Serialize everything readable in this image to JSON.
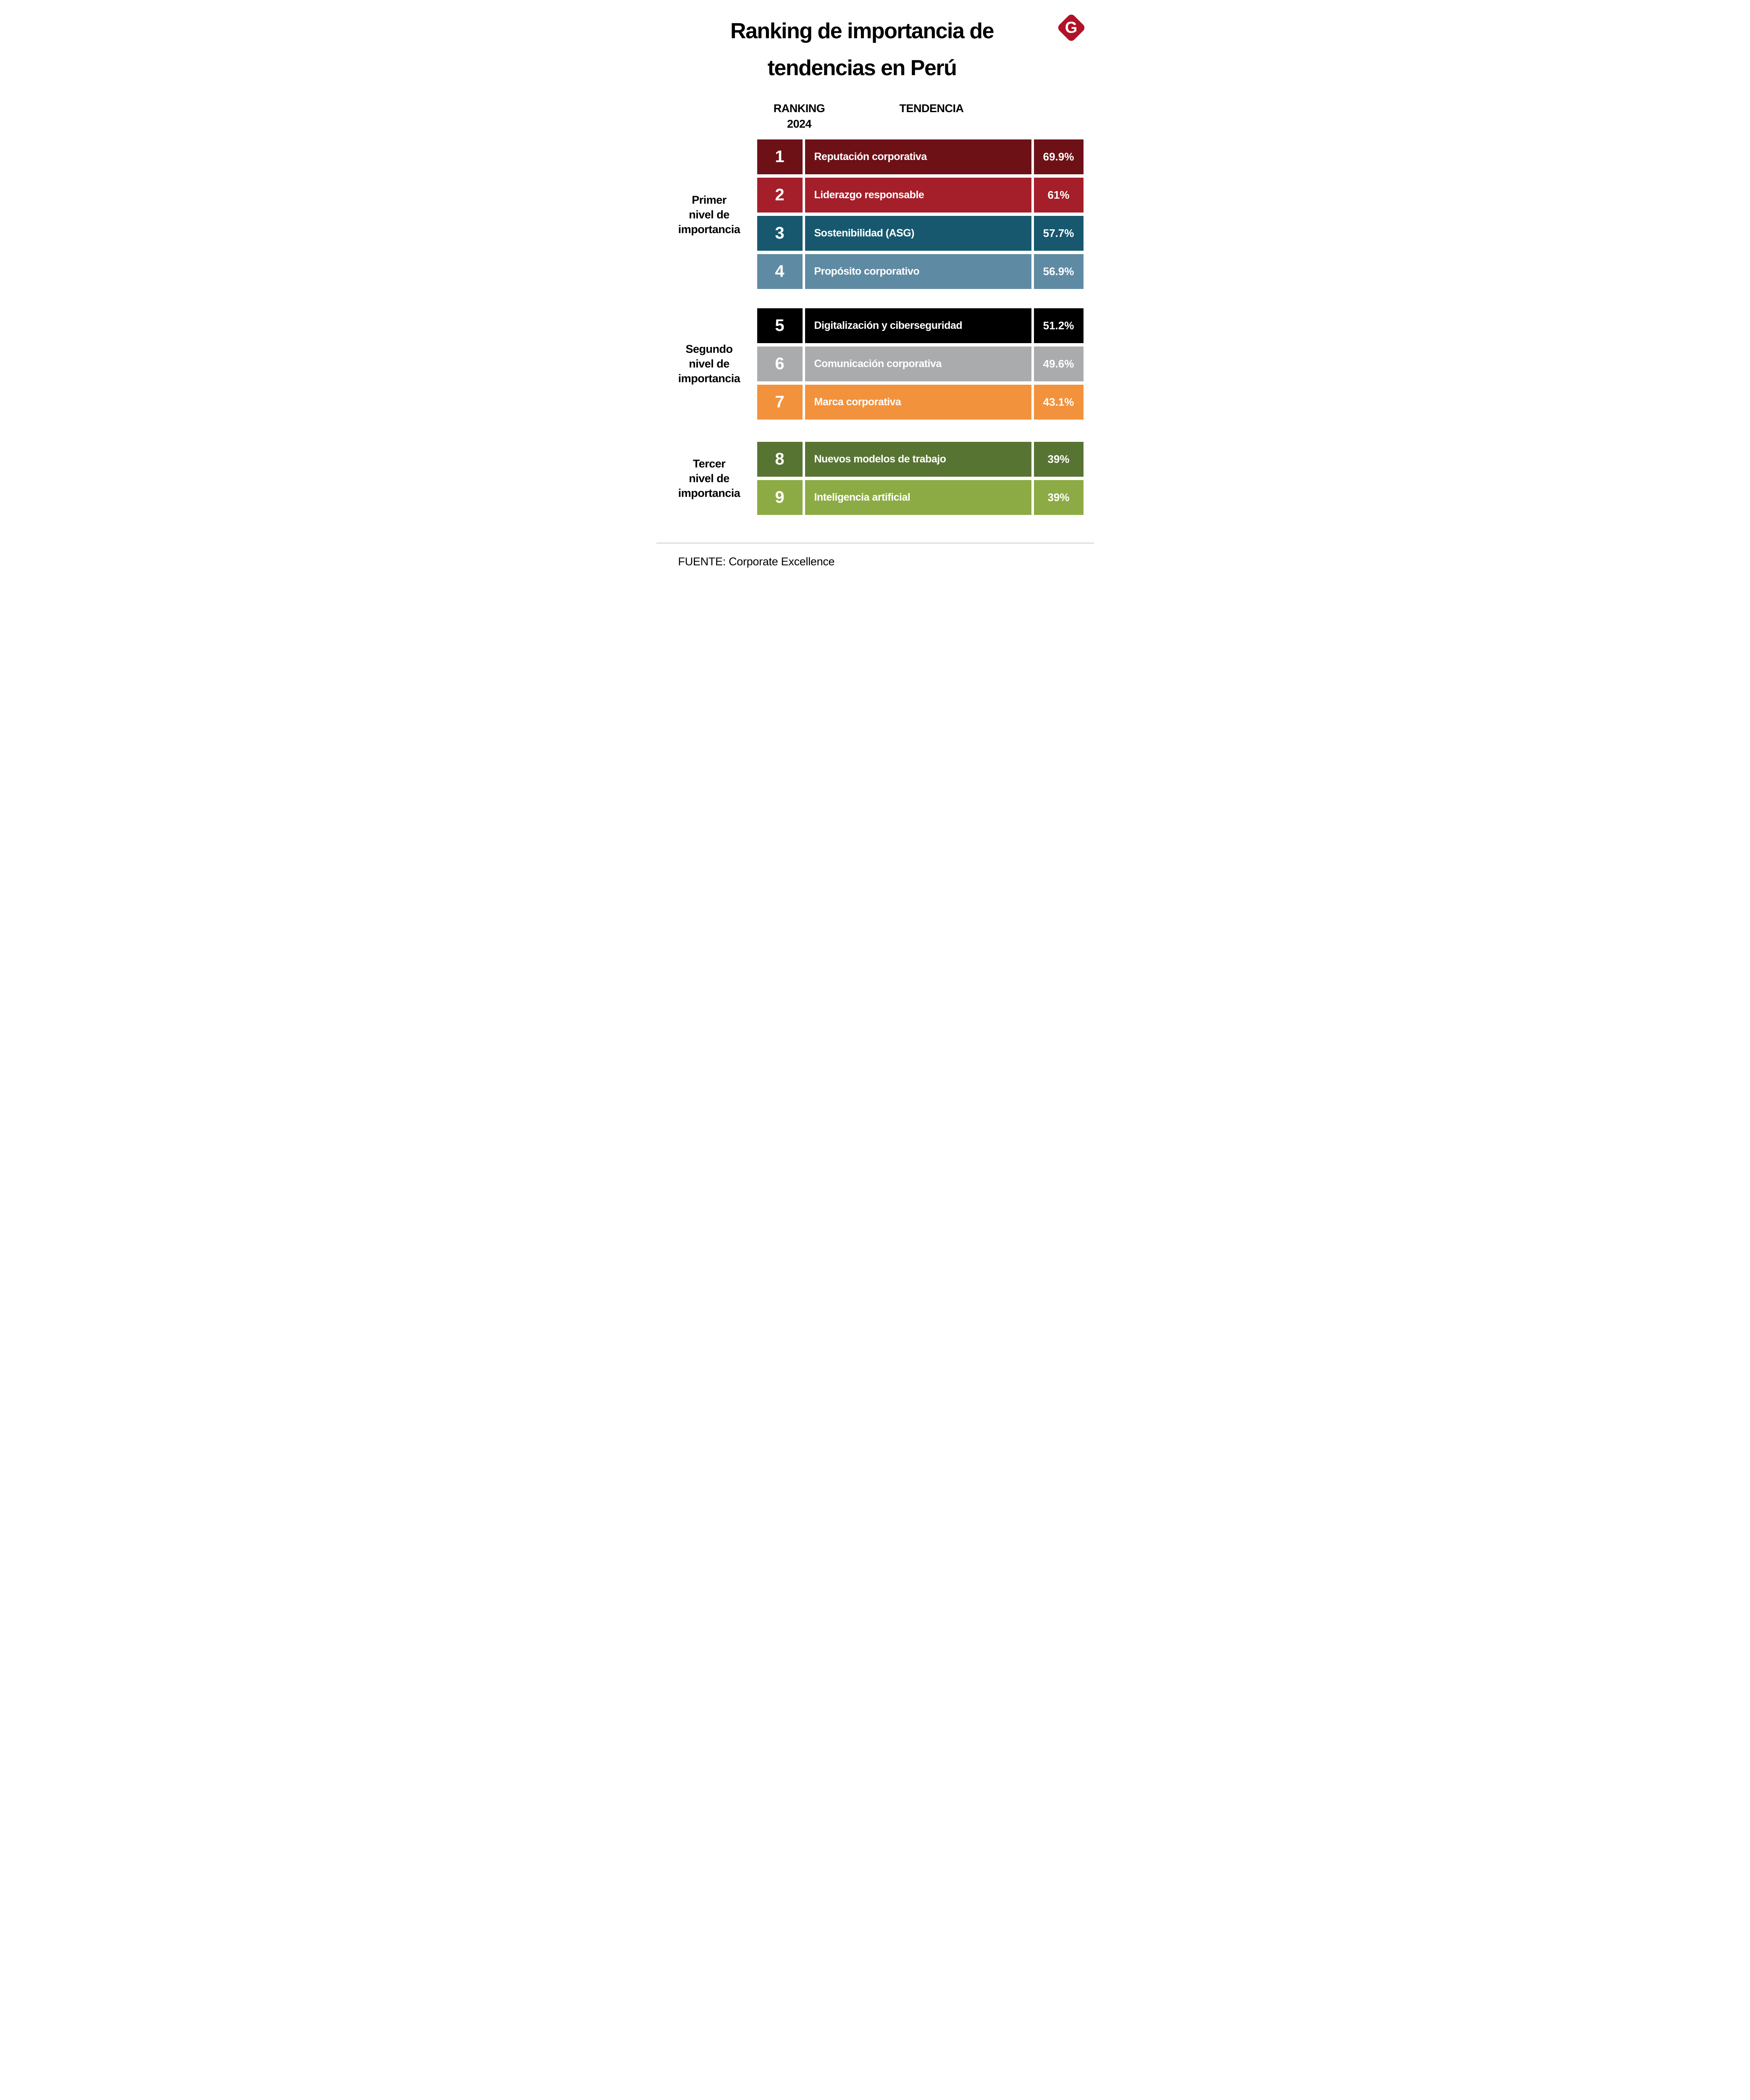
{
  "title": {
    "line1": "Ranking de importancia de",
    "line2": "tendencias en Perú"
  },
  "logo": {
    "letter": "G",
    "color": "#b01328"
  },
  "table": {
    "header_ranking": "RANKING\n2024",
    "header_tendencia": "TENDENCIA"
  },
  "groups": [
    {
      "label": "Primer\nnivel de\nimportancia"
    },
    {
      "label": "Segundo\nnivel de\nimportancia"
    },
    {
      "label": "Tercer\nnivel de\nimportancia"
    }
  ],
  "rows": [
    {
      "rank": "1",
      "trend": "Reputación corporativa",
      "value": "69.9%",
      "color": "#6d1117"
    },
    {
      "rank": "2",
      "trend": "Liderazgo responsable",
      "value": "61%",
      "color": "#a41f2a"
    },
    {
      "rank": "3",
      "trend": "Sostenibilidad (ASG)",
      "value": "57.7%",
      "color": "#17586f"
    },
    {
      "rank": "4",
      "trend": "Propósito corporativo",
      "value": "56.9%",
      "color": "#5f8aa3"
    },
    {
      "rank": "5",
      "trend": "Digitalización y ciberseguridad",
      "value": "51.2%",
      "color": "#000000"
    },
    {
      "rank": "6",
      "trend": "Comunicación corporativa",
      "value": "49.6%",
      "color": "#aaabad"
    },
    {
      "rank": "7",
      "trend": "Marca corporativa",
      "value": "43.1%",
      "color": "#f2923c"
    },
    {
      "rank": "8",
      "trend": "Nuevos modelos de trabajo",
      "value": "39%",
      "color": "#587433"
    },
    {
      "rank": "9",
      "trend": "Inteligencia artificial",
      "value": "39%",
      "color": "#8dab44"
    }
  ],
  "footer": {
    "source": "FUENTE: Corporate Excellence"
  },
  "chart_data": {
    "type": "table",
    "title": "Ranking de importancia de tendencias en Perú",
    "columns": [
      "RANKING 2024",
      "TENDENCIA",
      "%"
    ],
    "rows": [
      [
        1,
        "Reputación corporativa",
        69.9
      ],
      [
        2,
        "Liderazgo responsable",
        61
      ],
      [
        3,
        "Sostenibilidad (ASG)",
        57.7
      ],
      [
        4,
        "Propósito corporativo",
        56.9
      ],
      [
        5,
        "Digitalización y ciberseguridad",
        51.2
      ],
      [
        6,
        "Comunicación corporativa",
        49.6
      ],
      [
        7,
        "Marca corporativa",
        43.1
      ],
      [
        8,
        "Nuevos modelos de trabajo",
        39
      ],
      [
        9,
        "Inteligencia artificial",
        39
      ]
    ],
    "groups": [
      {
        "label": "Primer nivel de importancia",
        "ranks": [
          1,
          2,
          3,
          4
        ]
      },
      {
        "label": "Segundo nivel de importancia",
        "ranks": [
          5,
          6,
          7
        ]
      },
      {
        "label": "Tercer nivel de importancia",
        "ranks": [
          8,
          9
        ]
      }
    ],
    "row_colors": [
      "#6d1117",
      "#a41f2a",
      "#17586f",
      "#5f8aa3",
      "#000000",
      "#aaabad",
      "#f2923c",
      "#587433",
      "#8dab44"
    ],
    "source": "FUENTE: Corporate Excellence"
  }
}
